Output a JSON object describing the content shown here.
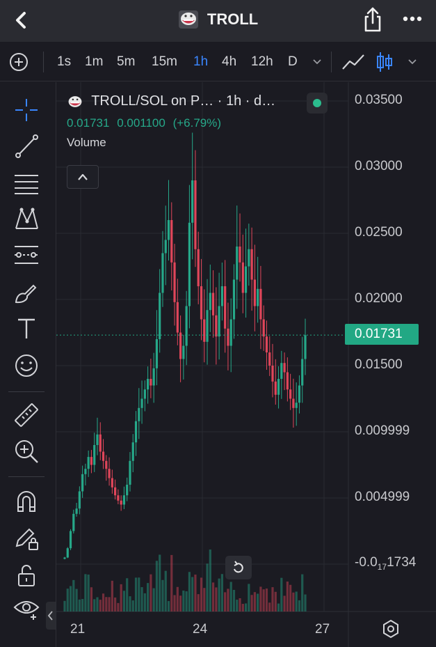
{
  "header": {
    "title": "TROLL",
    "back_icon": "chevron-left-icon",
    "share_icon": "share-icon",
    "more_icon": "more-horizontal-icon"
  },
  "intervals": {
    "items": [
      "1s",
      "1m",
      "5m",
      "15m",
      "1h",
      "4h",
      "12h",
      "D"
    ],
    "active": "1h"
  },
  "legend": {
    "symbol": "TROLL/SOL on P… · 1h · d…",
    "price": "0.01731",
    "change": "0.001100",
    "change_pct": "(+6.79%)",
    "volume_label": "Volume"
  },
  "price_axis": {
    "labels": [
      "0.03500",
      "0.03000",
      "0.02500",
      "0.02000",
      "0.01500",
      "0.009999",
      "0.004999"
    ],
    "bottom_label_prefix": "-0.0",
    "bottom_label_sub": "17",
    "bottom_label_suffix": "1734",
    "current": "0.01731"
  },
  "time_axis": {
    "labels": [
      "21",
      "24",
      "27"
    ]
  },
  "colors": {
    "up": "#26a889",
    "down": "#e0465a",
    "accent": "#3a86ff",
    "background": "#1b1b22"
  },
  "chart_data": {
    "type": "candlestick",
    "title": "TROLL/SOL on P… · 1h · d…",
    "ylim": [
      -0.001,
      0.035
    ],
    "x_ticks": [
      "21",
      "24",
      "27"
    ],
    "y_ticks": [
      0.035,
      0.03,
      0.025,
      0.02,
      0.015,
      0.009999,
      0.004999
    ],
    "last_price": 0.01731,
    "close_series": [
      0.0005,
      0.0012,
      0.0025,
      0.0038,
      0.0042,
      0.0055,
      0.0068,
      0.0072,
      0.0081,
      0.0075,
      0.009,
      0.0098,
      0.0085,
      0.0078,
      0.0072,
      0.0065,
      0.0058,
      0.0052,
      0.0048,
      0.0045,
      0.0052,
      0.006,
      0.0078,
      0.0092,
      0.0108,
      0.0118,
      0.0125,
      0.0132,
      0.014,
      0.0135,
      0.0148,
      0.017,
      0.0205,
      0.0235,
      0.0245,
      0.026,
      0.0228,
      0.0198,
      0.0175,
      0.0155,
      0.0165,
      0.0195,
      0.0258,
      0.029,
      0.0238,
      0.021,
      0.0185,
      0.0168,
      0.0192,
      0.0205,
      0.0188,
      0.0172,
      0.0195,
      0.021,
      0.0178,
      0.0165,
      0.0185,
      0.0215,
      0.024,
      0.0228,
      0.0205,
      0.0225,
      0.0238,
      0.0215,
      0.0195,
      0.0208,
      0.0185,
      0.0172,
      0.016,
      0.015,
      0.0138,
      0.0128,
      0.014,
      0.0152,
      0.0145,
      0.0132,
      0.0125,
      0.0118,
      0.0122,
      0.0135,
      0.0155,
      0.0173
    ]
  }
}
